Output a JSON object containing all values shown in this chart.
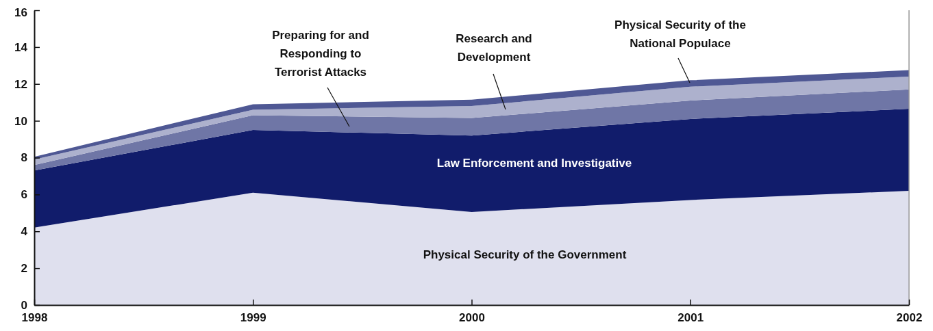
{
  "chart_data": {
    "type": "area",
    "stacked": true,
    "x": [
      1998,
      1999,
      2000,
      2001,
      2002
    ],
    "xlim": [
      1998,
      2002
    ],
    "xticks": [
      1998,
      1999,
      2000,
      2001,
      2002
    ],
    "ylim": [
      0,
      16
    ],
    "yticks": [
      0,
      2,
      4,
      6,
      8,
      10,
      12,
      14,
      16
    ],
    "series": [
      {
        "name": "Physical Security of the Government",
        "color": "#dfe0ee",
        "values": [
          4.2,
          6.1,
          5.05,
          5.7,
          6.2
        ]
      },
      {
        "name": "Law Enforcement and Investigative",
        "color": "#111c6b",
        "values": [
          3.1,
          3.4,
          4.15,
          4.4,
          4.45
        ]
      },
      {
        "name": "Preparing for and Responding to Terrorist Attacks",
        "color": "#6f76a6",
        "values": [
          0.3,
          0.8,
          0.95,
          1.0,
          1.05
        ]
      },
      {
        "name": "Research and Development",
        "color": "#adb1cd",
        "values": [
          0.3,
          0.3,
          0.65,
          0.75,
          0.7
        ]
      },
      {
        "name": "Physical Security of the National Populace",
        "color": "#4f5894",
        "values": [
          0.15,
          0.3,
          0.35,
          0.35,
          0.35
        ]
      }
    ]
  }
}
